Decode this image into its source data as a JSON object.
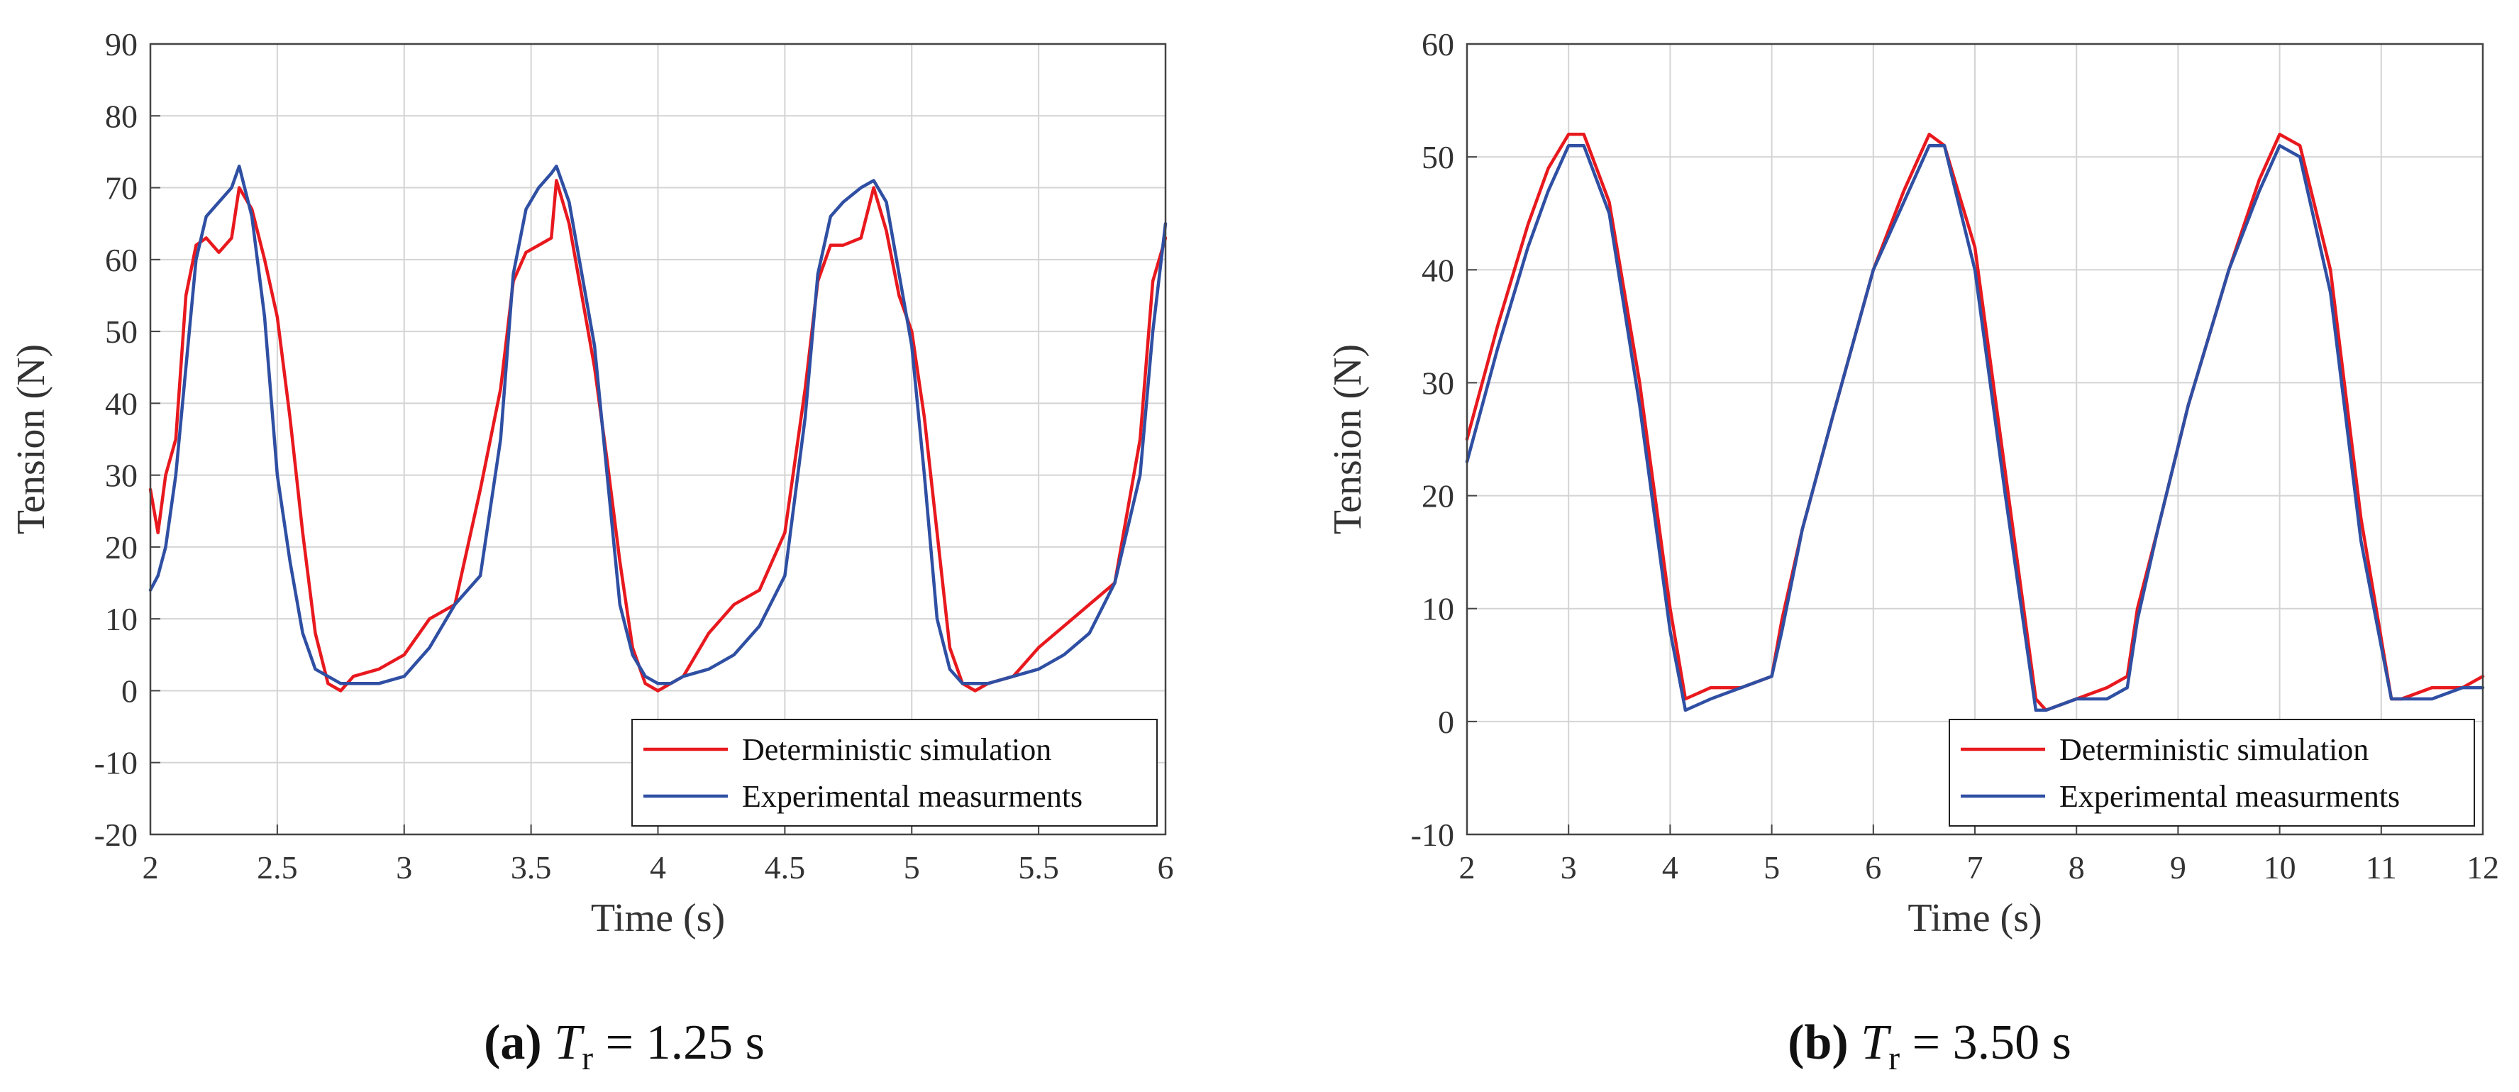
{
  "chart_data": [
    {
      "type": "line",
      "caption": {
        "tag": "(a)",
        "symbol": "T",
        "subscript": "r",
        "rest": "= 1.25 s"
      },
      "xlabel": "Time (s)",
      "ylabel": "Tension (N)",
      "xlim": [
        2,
        6
      ],
      "ylim": [
        -20,
        90
      ],
      "xticks": [
        2,
        2.5,
        3,
        3.5,
        4,
        4.5,
        5,
        5.5,
        6
      ],
      "xtick_labels": [
        "2",
        "2.5",
        "3",
        "3.5",
        "4",
        "4.5",
        "5",
        "5.5",
        "6"
      ],
      "yticks": [
        -20,
        -10,
        0,
        10,
        20,
        30,
        40,
        50,
        60,
        70,
        80,
        90
      ],
      "ytick_labels": [
        "-20",
        "-10",
        "0",
        "10",
        "20",
        "30",
        "40",
        "50",
        "60",
        "70",
        "80",
        "90"
      ],
      "grid": true,
      "legend_position": "bottom-right",
      "series": [
        {
          "name": "Deterministic simulation",
          "color": "#e8191e",
          "x": [
            2.0,
            2.03,
            2.06,
            2.1,
            2.14,
            2.18,
            2.22,
            2.27,
            2.32,
            2.35,
            2.4,
            2.45,
            2.5,
            2.55,
            2.6,
            2.65,
            2.7,
            2.75,
            2.8,
            2.9,
            3.0,
            3.1,
            3.2,
            3.3,
            3.38,
            3.43,
            3.48,
            3.53,
            3.58,
            3.6,
            3.65,
            3.7,
            3.75,
            3.8,
            3.85,
            3.9,
            3.95,
            4.0,
            4.05,
            4.1,
            4.2,
            4.3,
            4.4,
            4.5,
            4.58,
            4.63,
            4.68,
            4.73,
            4.8,
            4.85,
            4.9,
            4.95,
            5.0,
            5.05,
            5.1,
            5.15,
            5.2,
            5.25,
            5.3,
            5.4,
            5.5,
            5.6,
            5.7,
            5.8,
            5.9,
            5.95,
            6.0
          ],
          "y": [
            28,
            22,
            30,
            35,
            55,
            62,
            63,
            61,
            63,
            70,
            67,
            60,
            52,
            38,
            22,
            8,
            1,
            0,
            2,
            3,
            5,
            10,
            12,
            28,
            42,
            57,
            61,
            62,
            63,
            71,
            65,
            55,
            45,
            32,
            18,
            6,
            1,
            0,
            1,
            2,
            8,
            12,
            14,
            22,
            42,
            57,
            62,
            62,
            63,
            70,
            64,
            55,
            50,
            38,
            22,
            6,
            1,
            0,
            1,
            2,
            6,
            9,
            12,
            15,
            35,
            57,
            63
          ]
        },
        {
          "name": "Experimental measurments",
          "color": "#2f4fa3",
          "x": [
            2.0,
            2.03,
            2.06,
            2.1,
            2.14,
            2.18,
            2.22,
            2.27,
            2.32,
            2.35,
            2.4,
            2.45,
            2.5,
            2.55,
            2.6,
            2.65,
            2.7,
            2.75,
            2.8,
            2.9,
            3.0,
            3.1,
            3.2,
            3.3,
            3.38,
            3.43,
            3.48,
            3.53,
            3.58,
            3.6,
            3.65,
            3.7,
            3.75,
            3.8,
            3.85,
            3.9,
            3.95,
            4.0,
            4.05,
            4.1,
            4.2,
            4.3,
            4.4,
            4.5,
            4.58,
            4.63,
            4.68,
            4.73,
            4.8,
            4.85,
            4.9,
            4.95,
            5.0,
            5.05,
            5.1,
            5.15,
            5.2,
            5.25,
            5.3,
            5.4,
            5.5,
            5.6,
            5.7,
            5.8,
            5.9,
            5.95,
            6.0
          ],
          "y": [
            14,
            16,
            20,
            30,
            45,
            60,
            66,
            68,
            70,
            73,
            66,
            52,
            30,
            18,
            8,
            3,
            2,
            1,
            1,
            1,
            2,
            6,
            12,
            16,
            35,
            58,
            67,
            70,
            72,
            73,
            68,
            58,
            48,
            30,
            12,
            5,
            2,
            1,
            1,
            2,
            3,
            5,
            9,
            16,
            38,
            58,
            66,
            68,
            70,
            71,
            68,
            58,
            48,
            30,
            10,
            3,
            1,
            1,
            1,
            2,
            3,
            5,
            8,
            15,
            30,
            50,
            65
          ]
        }
      ]
    },
    {
      "type": "line",
      "caption": {
        "tag": "(b)",
        "symbol": "T",
        "subscript": "r",
        "rest": "= 3.50 s"
      },
      "xlabel": "Time (s)",
      "ylabel": "Tension (N)",
      "xlim": [
        2,
        12
      ],
      "ylim": [
        -10,
        60
      ],
      "xticks": [
        2,
        3,
        4,
        5,
        6,
        7,
        8,
        9,
        10,
        11,
        12
      ],
      "xtick_labels": [
        "2",
        "3",
        "4",
        "5",
        "6",
        "7",
        "8",
        "9",
        "10",
        "11",
        "12"
      ],
      "yticks": [
        -10,
        0,
        10,
        20,
        30,
        40,
        50,
        60
      ],
      "ytick_labels": [
        "-10",
        "0",
        "10",
        "20",
        "30",
        "40",
        "50",
        "60"
      ],
      "grid": true,
      "legend_position": "bottom-right",
      "series": [
        {
          "name": "Deterministic simulation",
          "color": "#e8191e",
          "x": [
            2.0,
            2.3,
            2.6,
            2.8,
            3.0,
            3.15,
            3.4,
            3.7,
            4.0,
            4.15,
            4.4,
            4.7,
            5.0,
            5.1,
            5.3,
            5.6,
            6.0,
            6.3,
            6.55,
            6.7,
            7.0,
            7.3,
            7.6,
            7.7,
            8.0,
            8.3,
            8.5,
            8.6,
            8.8,
            9.1,
            9.5,
            9.8,
            10.0,
            10.2,
            10.5,
            10.8,
            11.1,
            11.2,
            11.5,
            11.8,
            12.0
          ],
          "y": [
            25,
            35,
            44,
            49,
            52,
            52,
            46,
            30,
            10,
            2,
            3,
            3,
            4,
            9,
            17,
            27,
            40,
            47,
            52,
            51,
            42,
            22,
            2,
            1,
            2,
            3,
            4,
            10,
            17,
            28,
            40,
            48,
            52,
            51,
            40,
            18,
            2,
            2,
            3,
            3,
            4
          ]
        },
        {
          "name": "Experimental measurments",
          "color": "#2f4fa3",
          "x": [
            2.0,
            2.3,
            2.6,
            2.8,
            3.0,
            3.15,
            3.4,
            3.7,
            4.0,
            4.15,
            4.4,
            4.7,
            5.0,
            5.1,
            5.3,
            5.6,
            6.0,
            6.3,
            6.55,
            6.7,
            7.0,
            7.3,
            7.6,
            7.7,
            8.0,
            8.3,
            8.5,
            8.6,
            8.8,
            9.1,
            9.5,
            9.8,
            10.0,
            10.2,
            10.5,
            10.8,
            11.1,
            11.2,
            11.5,
            11.8,
            12.0
          ],
          "y": [
            23,
            33,
            42,
            47,
            51,
            51,
            45,
            28,
            8,
            1,
            2,
            3,
            4,
            8,
            17,
            27,
            40,
            46,
            51,
            51,
            40,
            20,
            1,
            1,
            2,
            2,
            3,
            9,
            17,
            28,
            40,
            47,
            51,
            50,
            38,
            16,
            2,
            2,
            2,
            3,
            3
          ]
        }
      ]
    }
  ]
}
